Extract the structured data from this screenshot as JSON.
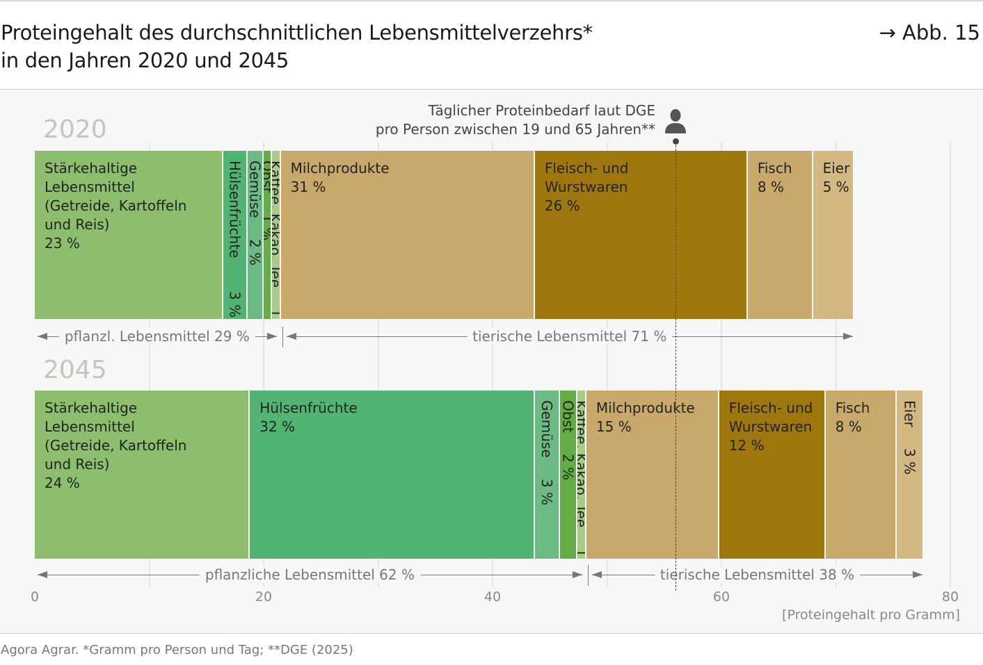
{
  "title_lines": [
    "Proteingehalt des durchschnittlichen Lebensmittelverzehrs*",
    "in den Jahren 2020 und 2045"
  ],
  "figure_ref": "→ Abb. 15",
  "footer": "Agora Agrar. *Gramm pro Person und Tag; **DGE (2025)",
  "chart_data": {
    "type": "bar",
    "orientation": "horizontal-stacked",
    "xlabel": "[Proteingehalt pro Gramm]",
    "xlim": [
      0,
      80
    ],
    "xticks": [
      "0",
      "20",
      "40",
      "60",
      "80"
    ],
    "grid": true,
    "reference_line": {
      "value": 56,
      "label_lines": [
        "Täglicher Proteinbedarf laut DGE",
        "pro Person zwischen 19 und 65 Jahren**"
      ],
      "icon": "person-icon"
    },
    "bars": [
      {
        "year": "2020",
        "segments": [
          {
            "name": "Stärkehaltige Lebensmittel (Getreide, Kartoffeln und Reis)",
            "lines": [
              "Stärkehaltige",
              "Lebensmittel",
              "(Getreide, Kartoffeln",
              "und Reis)"
            ],
            "pct": "23 %",
            "value": 16.5,
            "color": "#8dbe6e"
          },
          {
            "name": "Hülsenfrüchte",
            "lines": [
              "Hülsenfrüchte"
            ],
            "pct": "3 %",
            "value": 2.1,
            "color": "#52b473"
          },
          {
            "name": "Gemüse",
            "lines": [
              "Gemüse"
            ],
            "pct": "2 %",
            "value": 1.4,
            "color": "#6cbb84"
          },
          {
            "name": "Obst",
            "lines": [
              "Obst"
            ],
            "pct": "1 %",
            "value": 0.7,
            "color": "#62ae45"
          },
          {
            "name": "Kaffee, Kakao, Tee",
            "lines": [
              "Kaffee, Kakao, Tee"
            ],
            "pct": "1 %",
            "value": 0.8,
            "color": "#a8cc88"
          },
          {
            "name": "Milchprodukte",
            "lines": [
              "Milchprodukte"
            ],
            "pct": "31 %",
            "value": 22.2,
            "color": "#c8a96b"
          },
          {
            "name": "Fleisch- und Wurstwaren",
            "lines": [
              "Fleisch- und",
              "Wurstwaren"
            ],
            "pct": "26 %",
            "value": 18.6,
            "color": "#9e780e"
          },
          {
            "name": "Fisch",
            "lines": [
              "Fisch"
            ],
            "pct": "8 %",
            "value": 5.7,
            "color": "#c8a96b"
          },
          {
            "name": "Eier",
            "lines": [
              "Eier"
            ],
            "pct": "5 %",
            "value": 3.6,
            "color": "#d3b882"
          }
        ],
        "groups": [
          {
            "label": "pflanzl. Lebensmittel 29 %",
            "segments": 5
          },
          {
            "label": "tierische Lebensmittel 71 %",
            "segments": 4
          }
        ]
      },
      {
        "year": "2045",
        "segments": [
          {
            "name": "Stärkehaltige Lebensmittel (Getreide, Kartoffeln und Reis)",
            "lines": [
              "Stärkehaltige",
              "Lebensmittel",
              "(Getreide, Kartoffeln",
              "und Reis)"
            ],
            "pct": "24 %",
            "value": 18.8,
            "color": "#8dbe6e"
          },
          {
            "name": "Hülsenfrüchte",
            "lines": [
              "Hülsenfrüchte"
            ],
            "pct": "32 %",
            "value": 24.9,
            "color": "#52b473"
          },
          {
            "name": "Gemüse",
            "lines": [
              "Gemüse"
            ],
            "pct": "3 %",
            "value": 2.2,
            "color": "#6cbb84"
          },
          {
            "name": "Obst",
            "lines": [
              "Obst"
            ],
            "pct": "2 %",
            "value": 1.5,
            "color": "#62ae45"
          },
          {
            "name": "Kaffee, Kakao, Tee",
            "lines": [
              "Kaffee, Kakao, Tee"
            ],
            "pct": "1 %",
            "value": 0.8,
            "color": "#a8cc88"
          },
          {
            "name": "Milchprodukte",
            "lines": [
              "Milchprodukte"
            ],
            "pct": "15 %",
            "value": 11.6,
            "color": "#c8a96b"
          },
          {
            "name": "Fleisch- und Wurstwaren",
            "lines": [
              "Fleisch- und",
              "Wurstwaren"
            ],
            "pct": "12 %",
            "value": 9.3,
            "color": "#9e780e"
          },
          {
            "name": "Fisch",
            "lines": [
              "Fisch"
            ],
            "pct": "8 %",
            "value": 6.2,
            "color": "#c8a96b"
          },
          {
            "name": "Eier",
            "lines": [
              "Eier"
            ],
            "pct": "3 %",
            "value": 2.4,
            "color": "#d3b882"
          }
        ],
        "groups": [
          {
            "label": "pflanzliche Lebensmittel 62 %",
            "segments": 5
          },
          {
            "label": "tierische Lebensmittel 38 %",
            "segments": 4
          }
        ]
      }
    ]
  }
}
